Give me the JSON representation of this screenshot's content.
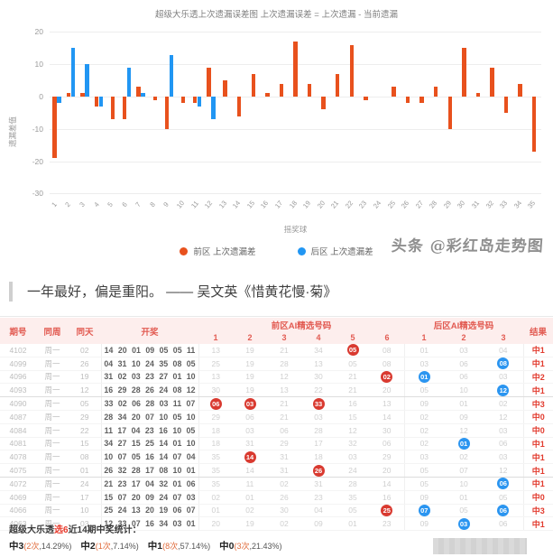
{
  "chart": {
    "watermark": "头条 @彩红岛走势图"
  },
  "chart_data": {
    "type": "bar",
    "title": "超级大乐透上次遗漏误差图 上次遗漏误差 = 上次遗漏 - 当前遗漏",
    "xlabel": "摇奖球",
    "ylabel": "遗漏差值",
    "ylim": [
      -30,
      20
    ],
    "yticks": [
      20,
      10,
      0,
      -10,
      -20,
      -30
    ],
    "categories": [
      1,
      2,
      3,
      4,
      5,
      6,
      7,
      8,
      9,
      10,
      11,
      12,
      13,
      14,
      15,
      16,
      17,
      18,
      19,
      20,
      21,
      22,
      23,
      24,
      25,
      26,
      27,
      28,
      29,
      30,
      31,
      32,
      33,
      34,
      35
    ],
    "grid": true,
    "legend_position": "bottom",
    "series": [
      {
        "name": "前区 上次遗漏差",
        "color": "#e8511d",
        "values": [
          -19,
          1,
          1,
          -3,
          -7,
          -7,
          3,
          -1,
          -10,
          -2,
          -2,
          9,
          5,
          -6,
          7,
          1,
          4,
          17,
          4,
          -4,
          7,
          16,
          -1,
          0,
          3,
          -2,
          -2,
          3,
          -10,
          15,
          1,
          9,
          -5,
          4,
          -17
        ]
      },
      {
        "name": "后区 上次遗漏差",
        "color": "#2196f3",
        "values": [
          -2,
          15,
          10,
          -3,
          0,
          9,
          1,
          0,
          13,
          0,
          -3,
          -7
        ]
      }
    ]
  },
  "quote": {
    "text": "一年最好，偏是重阳。 —— 吴文英《惜黄花慢·菊》"
  },
  "table": {
    "headers": {
      "issue": "期号",
      "same_week": "同周",
      "same_day": "同天",
      "draw": "开奖",
      "result": "结果"
    },
    "group_headers": {
      "front": "前区AI精选号码",
      "back": "后区AI精选号码"
    },
    "front_subcols": [
      "1",
      "2",
      "3",
      "4",
      "5",
      "6"
    ],
    "back_subcols": [
      "1",
      "2",
      "3"
    ],
    "rows": [
      {
        "issue": "4102",
        "week": "周一",
        "day": "02",
        "draw": "14 20 01 09 05 05 11",
        "front": [
          "13",
          "19",
          "21",
          "34",
          {
            "v": "05",
            "h": "r"
          },
          "08"
        ],
        "back": [
          "01",
          "03",
          "04"
        ],
        "result": "中1"
      },
      {
        "issue": "4099",
        "week": "周一",
        "day": "26",
        "draw": "04 31 10 24 35 08 05",
        "front": [
          "25",
          "19",
          "28",
          "13",
          "05",
          "08"
        ],
        "back": [
          "03",
          "06",
          {
            "v": "08",
            "h": "b"
          }
        ],
        "result": "中1"
      },
      {
        "issue": "4096",
        "week": "周一",
        "day": "19",
        "draw": "31 02 03 23 27 01 10",
        "front": [
          "13",
          "19",
          "12",
          "30",
          "21",
          {
            "v": "02",
            "h": "r"
          }
        ],
        "back": [
          {
            "v": "01",
            "h": "b"
          },
          "06",
          "03"
        ],
        "result": "中2"
      },
      {
        "issue": "4093",
        "week": "周一",
        "day": "12",
        "draw": "16 29 28 26 24 08 12",
        "front": [
          "30",
          "19",
          "13",
          "22",
          "21",
          "20"
        ],
        "back": [
          "05",
          "10",
          {
            "v": "12",
            "h": "b"
          }
        ],
        "result": "中1"
      },
      {
        "issue": "4090",
        "week": "周一",
        "day": "05",
        "draw": "33 02 06 28 03 11 07",
        "front": [
          {
            "v": "06",
            "h": "r"
          },
          {
            "v": "03",
            "h": "r"
          },
          "21",
          {
            "v": "33",
            "h": "r"
          },
          "16",
          "13"
        ],
        "back": [
          "09",
          "01",
          "02"
        ],
        "result": "中3"
      },
      {
        "issue": "4087",
        "week": "周一",
        "day": "29",
        "draw": "28 34 20 07 10 05 10",
        "front": [
          "29",
          "06",
          "21",
          "03",
          "15",
          "14"
        ],
        "back": [
          "02",
          "09",
          "12"
        ],
        "result": "中0"
      },
      {
        "issue": "4084",
        "week": "周一",
        "day": "22",
        "draw": "11 17 04 23 16 10 05",
        "front": [
          "18",
          "03",
          "06",
          "28",
          "12",
          "30"
        ],
        "back": [
          "02",
          "12",
          "03"
        ],
        "result": "中0"
      },
      {
        "issue": "4081",
        "week": "周一",
        "day": "15",
        "draw": "34 27 15 25 14 01 10",
        "front": [
          "18",
          "31",
          "29",
          "17",
          "32",
          "06"
        ],
        "back": [
          "02",
          {
            "v": "01",
            "h": "b"
          },
          "06"
        ],
        "result": "中1"
      },
      {
        "issue": "4078",
        "week": "周一",
        "day": "08",
        "draw": "10 07 05 16 14 07 04",
        "front": [
          "35",
          {
            "v": "14",
            "h": "r"
          },
          "31",
          "18",
          "03",
          "29"
        ],
        "back": [
          "03",
          "02",
          "03"
        ],
        "result": "中1"
      },
      {
        "issue": "4075",
        "week": "周一",
        "day": "01",
        "draw": "26 32 28 17 08 10 01",
        "front": [
          "35",
          "14",
          "31",
          {
            "v": "26",
            "h": "r"
          },
          "24",
          "20"
        ],
        "back": [
          "05",
          "07",
          "12"
        ],
        "result": "中1"
      },
      {
        "issue": "4072",
        "week": "周一",
        "day": "24",
        "draw": "21 23 17 04 32 01 06",
        "front": [
          "35",
          "11",
          "02",
          "31",
          "28",
          "14"
        ],
        "back": [
          "05",
          "10",
          {
            "v": "06",
            "h": "b"
          }
        ],
        "result": "中1"
      },
      {
        "issue": "4069",
        "week": "周一",
        "day": "17",
        "draw": "15 07 20 09 24 07 03",
        "front": [
          "02",
          "01",
          "26",
          "23",
          "35",
          "16"
        ],
        "back": [
          "09",
          "01",
          "05"
        ],
        "result": "中0"
      },
      {
        "issue": "4066",
        "week": "周一",
        "day": "10",
        "draw": "25 24 13 20 19 06 07",
        "front": [
          "01",
          "02",
          "30",
          "04",
          "05",
          {
            "v": "25",
            "h": "r"
          }
        ],
        "back": [
          {
            "v": "07",
            "h": "b"
          },
          "05",
          {
            "v": "06",
            "h": "b"
          }
        ],
        "result": "中3"
      },
      {
        "issue": "4063",
        "week": "周一",
        "day": "03",
        "draw": "12 33 07 16 34 03 01",
        "front": [
          "20",
          "19",
          "02",
          "09",
          "01",
          "23"
        ],
        "back": [
          "09",
          {
            "v": "03",
            "h": "b"
          },
          "06"
        ],
        "result": "中1"
      }
    ],
    "separator_after_rows": [
      3,
      9
    ]
  },
  "stats": {
    "title_prefix": "超级大乐透",
    "title_highlight": "选6",
    "title_suffix": "近14期中奖统计：",
    "items": [
      {
        "label": "中3",
        "count": "2次",
        "pct": "14.29%"
      },
      {
        "label": "中2",
        "count": "1次",
        "pct": "7.14%"
      },
      {
        "label": "中1",
        "count": "8次",
        "pct": "57.14%"
      },
      {
        "label": "中0",
        "count": "3次",
        "pct": "21.43%"
      }
    ]
  }
}
